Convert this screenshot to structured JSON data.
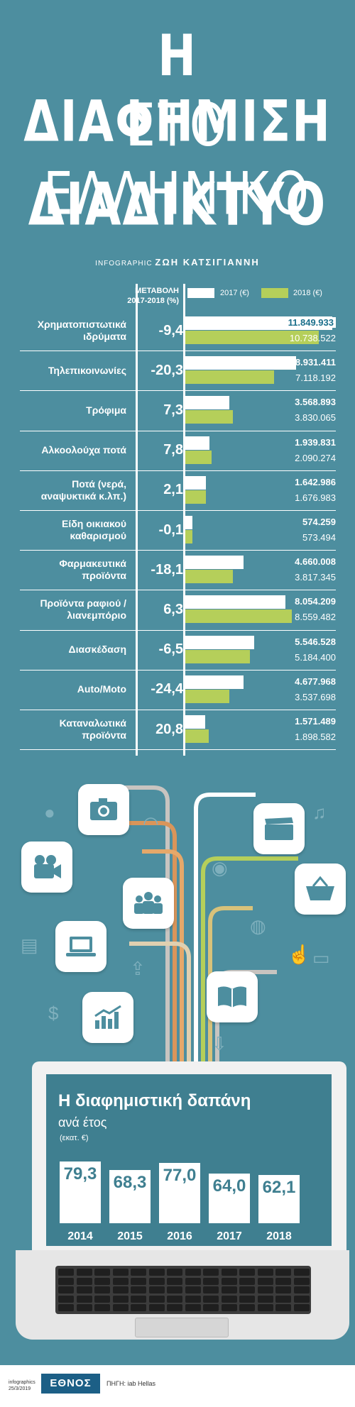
{
  "title": {
    "line1": "Η ΔΙΑΦΗΜΙΣΗ",
    "line2": "ΣΤΟ ΕΛΛΗΝΙΚΟ",
    "line3": "ΔΙΑΔΙΚΤΥΟ"
  },
  "credit": {
    "label": "INFOGRAPHIC",
    "author": "ΖΩΗ ΚΑΤΣΙΓΙΑΝΝΗ"
  },
  "colors": {
    "background": "#4d8e9f",
    "y2017": "#ffffff",
    "y2018": "#b5cf5a"
  },
  "chart_data": [
    {
      "type": "bar",
      "column_header_change": "ΜΕΤΑΒΟΛΗ\n2017-2018 (%)",
      "series": [
        {
          "name": "2017 (€)",
          "values": [
            11849933,
            8931411,
            3568893,
            1939831,
            1642986,
            574259,
            4660008,
            8054209,
            5546528,
            4677968,
            1571489
          ]
        },
        {
          "name": "2018 (€)",
          "values": [
            10738522,
            7118192,
            3830065,
            2090274,
            1676983,
            573494,
            3817345,
            8559482,
            5184400,
            3537698,
            1898582
          ]
        }
      ],
      "categories": [
        "Χρηματοπιστωτικά ιδρύματα",
        "Τηλεπικοινωνίες",
        "Τρόφιμα",
        "Αλκοολούχα ποτά",
        "Ποτά (νερά, αναψυκτικά κ.λπ.)",
        "Είδη οικιακού καθαρισμού",
        "Φαρμακευτικά προϊόντα",
        "Προϊόντα ραφιού /λιανεμπόριο",
        "Διασκέδαση",
        "Auto/Moto",
        "Καταναλωτικά προϊόντα"
      ],
      "change_pct": [
        "-9,4",
        "-20,3",
        "7,3",
        "7,8",
        "2,1",
        "-0,1",
        "-18,1",
        "6,3",
        "-6,5",
        "-24,4",
        "20,8"
      ],
      "labels2017": [
        "11.849.933",
        "8.931.411",
        "3.568.893",
        "1.939.831",
        "1.642.986",
        "574.259",
        "4.660.008",
        "8.054.209",
        "5.546.528",
        "4.677.968",
        "1.571.489"
      ],
      "labels2018": [
        "10.738.522",
        "7.118.192",
        "3.830.065",
        "2.090.274",
        "1.676.983",
        "573.494",
        "3.817.345",
        "8.559.482",
        "5.184.400",
        "3.537.698",
        "1.898.582"
      ]
    },
    {
      "type": "bar",
      "title": "Η διαφημιστική δαπάνη",
      "subtitle": "ανά έτος",
      "unit": "(εκατ. €)",
      "categories": [
        "2014",
        "2015",
        "2016",
        "2017",
        "2018"
      ],
      "values": [
        79.3,
        68.3,
        77.0,
        64.0,
        62.1
      ],
      "value_labels": [
        "79,3",
        "68,3",
        "77,0",
        "64,0",
        "62,1"
      ]
    }
  ],
  "footer": {
    "small": "infographics\n25/3/2019",
    "logo": "ΕΘΝΟΣ",
    "source": "ΠΗΓΗ: iab Hellas"
  }
}
